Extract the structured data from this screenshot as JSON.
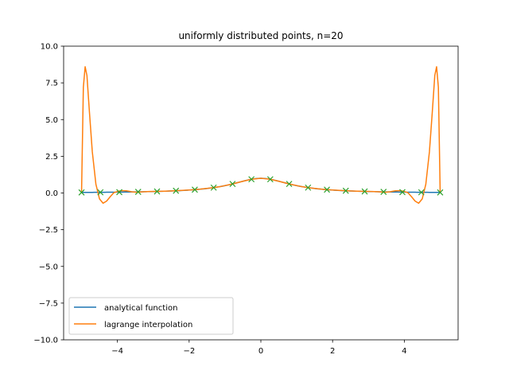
{
  "chart_data": {
    "type": "line",
    "title": "uniformly distributed points, n=20",
    "xlabel": "",
    "ylabel": "",
    "xlim": [
      -5.5,
      5.5
    ],
    "ylim": [
      -10.0,
      10.0
    ],
    "x_ticks": [
      -4,
      -2,
      0,
      2,
      4
    ],
    "x_tick_labels": [
      "−4",
      "−2",
      "0",
      "2",
      "4"
    ],
    "y_ticks": [
      -10.0,
      -7.5,
      -5.0,
      -2.5,
      0.0,
      2.5,
      5.0,
      7.5,
      10.0
    ],
    "y_tick_labels": [
      "−10.0",
      "−7.5",
      "−5.0",
      "−2.5",
      "0.0",
      "2.5",
      "5.0",
      "7.5",
      "10.0"
    ],
    "grid": false,
    "legend_position": "lower-left",
    "series": [
      {
        "name": "analytical function",
        "color": "#1f77b4",
        "style": "line",
        "function": "1/(1+x^2)",
        "x_range": [
          -5,
          5
        ]
      },
      {
        "name": "lagrange interpolation",
        "color": "#ff7f0e",
        "style": "line",
        "x": [
          -5.0,
          -4.95,
          -4.9,
          -4.85,
          -4.78,
          -4.7,
          -4.6,
          -4.5,
          -4.4,
          -4.3,
          -4.2,
          -4.1,
          -4.0,
          -3.9,
          -3.75,
          -3.6,
          -3.45,
          -3.3,
          -3.1,
          -2.9,
          -2.6,
          -2.3,
          -2.0,
          -1.7,
          -1.4,
          -1.1,
          -0.8,
          -0.5,
          -0.25,
          0.0,
          0.25,
          0.5,
          0.8,
          1.1,
          1.4,
          1.7,
          2.0,
          2.3,
          2.6,
          2.9,
          3.1,
          3.3,
          3.45,
          3.6,
          3.75,
          3.9,
          4.0,
          4.1,
          4.2,
          4.3,
          4.4,
          4.5,
          4.6,
          4.7,
          4.78,
          4.85,
          4.9,
          4.95,
          5.0
        ],
        "y": [
          0.04,
          7.2,
          8.6,
          8.0,
          5.5,
          2.8,
          0.6,
          -0.4,
          -0.7,
          -0.55,
          -0.25,
          0.02,
          0.1,
          0.16,
          0.15,
          0.08,
          0.05,
          0.08,
          0.1,
          0.11,
          0.13,
          0.16,
          0.2,
          0.26,
          0.34,
          0.45,
          0.61,
          0.8,
          0.94,
          1.0,
          0.94,
          0.8,
          0.61,
          0.45,
          0.34,
          0.26,
          0.2,
          0.16,
          0.13,
          0.11,
          0.1,
          0.08,
          0.05,
          0.08,
          0.15,
          0.16,
          0.1,
          0.02,
          -0.25,
          -0.55,
          -0.7,
          -0.4,
          0.6,
          2.8,
          5.5,
          8.0,
          8.6,
          7.2,
          0.04
        ]
      },
      {
        "name": "",
        "color": "#2ca02c",
        "style": "markers",
        "marker": "x",
        "x": [
          -5.0,
          -4.474,
          -3.947,
          -3.421,
          -2.895,
          -2.368,
          -1.842,
          -1.316,
          -0.789,
          -0.263,
          0.263,
          0.789,
          1.316,
          1.842,
          2.368,
          2.895,
          3.421,
          3.947,
          4.474,
          5.0
        ],
        "y": [
          0.038,
          0.048,
          0.06,
          0.079,
          0.107,
          0.151,
          0.228,
          0.366,
          0.616,
          0.935,
          0.935,
          0.616,
          0.366,
          0.228,
          0.151,
          0.107,
          0.079,
          0.06,
          0.048,
          0.038
        ]
      }
    ]
  }
}
